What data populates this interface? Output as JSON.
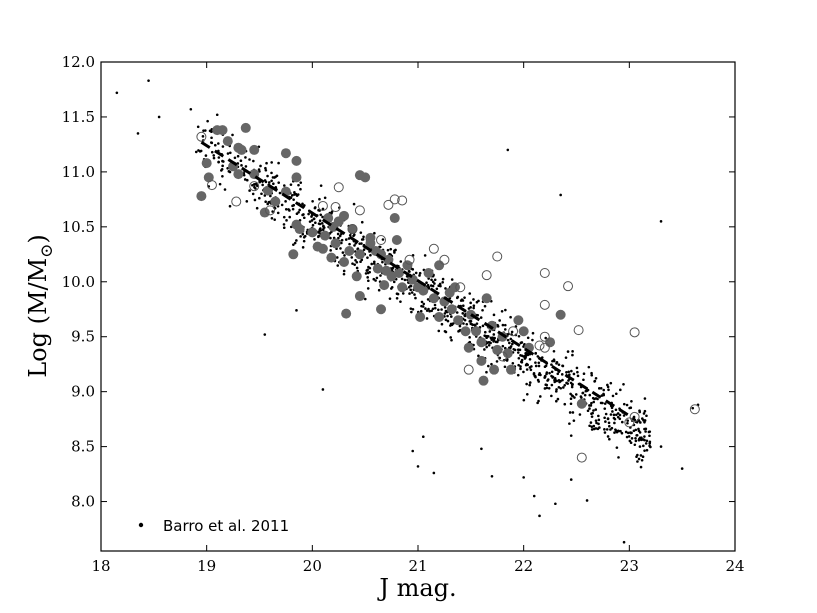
{
  "chart_data": {
    "type": "scatter",
    "xlabel": "J mag.",
    "ylabel_prefix": "Log (M/M",
    "ylabel_suffix": ")",
    "xlim": [
      18,
      24
    ],
    "ylim": [
      7.55,
      12.0
    ],
    "x_ticks": [
      "18",
      "19",
      "20",
      "21",
      "22",
      "23",
      "24"
    ],
    "y_ticks": [
      "8.0",
      "8.5",
      "9.0",
      "9.5",
      "10.0",
      "10.5",
      "11.0",
      "11.5",
      "12.0"
    ],
    "grid": false,
    "legend_position": "lower-left",
    "series": [
      {
        "name": "Barro et al. 2011",
        "marker": "small-dot",
        "color": "#000000",
        "trend": {
          "slope": -0.63,
          "intercept": 23.17,
          "sigma": 0.28,
          "x_range": [
            18.9,
            23.2
          ]
        },
        "count": 1100,
        "outliers": [
          [
            18.15,
            11.72
          ],
          [
            18.45,
            11.83
          ],
          [
            18.55,
            11.5
          ],
          [
            18.35,
            11.35
          ],
          [
            18.85,
            11.57
          ],
          [
            19.1,
            11.52
          ],
          [
            19.55,
            9.52
          ],
          [
            19.85,
            9.74
          ],
          [
            20.1,
            9.02
          ],
          [
            21.05,
            8.59
          ],
          [
            21.15,
            8.26
          ],
          [
            21.6,
            8.48
          ],
          [
            21.7,
            8.23
          ],
          [
            22.15,
            7.87
          ],
          [
            22.3,
            7.98
          ],
          [
            22.1,
            8.05
          ],
          [
            22.6,
            8.01
          ],
          [
            22.95,
            7.63
          ],
          [
            23.5,
            8.3
          ],
          [
            23.3,
            8.5
          ],
          [
            23.3,
            10.55
          ],
          [
            22.35,
            10.79
          ],
          [
            21.85,
            11.2
          ],
          [
            23.65,
            8.88
          ],
          [
            23.6,
            8.85
          ],
          [
            21.0,
            8.32
          ],
          [
            20.95,
            8.46
          ],
          [
            22.45,
            8.2
          ],
          [
            22.45,
            8.6
          ],
          [
            22.0,
            8.22
          ]
        ]
      },
      {
        "name": "",
        "marker": "filled-circle",
        "color": "#666666",
        "points": [
          [
            19.1,
            11.38
          ],
          [
            19.15,
            11.38
          ],
          [
            19.37,
            11.4
          ],
          [
            19.3,
            11.22
          ],
          [
            19.33,
            11.2
          ],
          [
            19.45,
            11.2
          ],
          [
            19.2,
            11.28
          ],
          [
            19.0,
            11.08
          ],
          [
            19.02,
            10.95
          ],
          [
            18.95,
            10.78
          ],
          [
            19.25,
            11.05
          ],
          [
            19.3,
            10.98
          ],
          [
            19.55,
            10.63
          ],
          [
            19.58,
            10.83
          ],
          [
            19.75,
            10.82
          ],
          [
            19.75,
            11.17
          ],
          [
            19.85,
            11.1
          ],
          [
            19.85,
            10.95
          ],
          [
            19.65,
            10.73
          ],
          [
            19.85,
            10.52
          ],
          [
            19.88,
            10.48
          ],
          [
            19.82,
            10.25
          ],
          [
            20.0,
            10.45
          ],
          [
            20.05,
            10.32
          ],
          [
            20.12,
            10.42
          ],
          [
            20.1,
            10.3
          ],
          [
            20.22,
            10.35
          ],
          [
            20.2,
            10.5
          ],
          [
            20.25,
            10.55
          ],
          [
            20.3,
            10.6
          ],
          [
            20.18,
            10.22
          ],
          [
            20.35,
            10.28
          ],
          [
            20.3,
            10.18
          ],
          [
            20.42,
            10.05
          ],
          [
            20.45,
            10.25
          ],
          [
            20.45,
            10.97
          ],
          [
            20.5,
            10.95
          ],
          [
            20.32,
            9.71
          ],
          [
            20.45,
            9.87
          ],
          [
            20.55,
            10.35
          ],
          [
            20.6,
            10.28
          ],
          [
            20.62,
            10.12
          ],
          [
            20.65,
            10.25
          ],
          [
            20.7,
            10.1
          ],
          [
            20.72,
            10.2
          ],
          [
            20.68,
            9.97
          ],
          [
            20.75,
            10.05
          ],
          [
            20.8,
            10.38
          ],
          [
            20.78,
            10.58
          ],
          [
            20.82,
            10.08
          ],
          [
            20.9,
            10.15
          ],
          [
            20.85,
            9.95
          ],
          [
            20.95,
            10.02
          ],
          [
            21.0,
            9.95
          ],
          [
            20.65,
            9.75
          ],
          [
            21.02,
            9.68
          ],
          [
            21.05,
            9.92
          ],
          [
            21.1,
            10.08
          ],
          [
            21.15,
            9.85
          ],
          [
            21.2,
            10.15
          ],
          [
            21.2,
            9.68
          ],
          [
            21.25,
            9.82
          ],
          [
            21.3,
            9.9
          ],
          [
            21.35,
            9.95
          ],
          [
            21.32,
            9.75
          ],
          [
            21.38,
            9.65
          ],
          [
            21.45,
            9.55
          ],
          [
            21.48,
            9.4
          ],
          [
            21.5,
            9.7
          ],
          [
            21.55,
            9.55
          ],
          [
            21.6,
            9.45
          ],
          [
            21.6,
            9.28
          ],
          [
            21.62,
            9.1
          ],
          [
            21.65,
            9.85
          ],
          [
            21.7,
            9.6
          ],
          [
            21.75,
            9.38
          ],
          [
            21.72,
            9.2
          ],
          [
            21.8,
            9.5
          ],
          [
            21.85,
            9.35
          ],
          [
            21.88,
            9.2
          ],
          [
            21.95,
            9.65
          ],
          [
            22.0,
            9.55
          ],
          [
            22.05,
            9.4
          ],
          [
            22.25,
            9.45
          ],
          [
            22.35,
            9.7
          ],
          [
            22.55,
            8.89
          ],
          [
            20.15,
            10.58
          ],
          [
            20.38,
            10.48
          ],
          [
            20.55,
            10.4
          ],
          [
            19.45,
            10.98
          ]
        ]
      },
      {
        "name": "",
        "marker": "open-circle",
        "color": "#555555",
        "points": [
          [
            18.95,
            11.32
          ],
          [
            19.05,
            10.88
          ],
          [
            19.28,
            10.73
          ],
          [
            19.45,
            10.87
          ],
          [
            19.6,
            10.65
          ],
          [
            20.1,
            10.69
          ],
          [
            20.22,
            10.68
          ],
          [
            20.25,
            10.86
          ],
          [
            20.45,
            10.65
          ],
          [
            20.65,
            10.38
          ],
          [
            20.72,
            10.7
          ],
          [
            20.78,
            10.75
          ],
          [
            20.85,
            10.74
          ],
          [
            20.92,
            10.2
          ],
          [
            21.15,
            10.3
          ],
          [
            21.25,
            10.2
          ],
          [
            21.4,
            9.95
          ],
          [
            21.48,
            9.2
          ],
          [
            21.65,
            10.06
          ],
          [
            21.75,
            10.23
          ],
          [
            21.8,
            9.32
          ],
          [
            21.9,
            9.55
          ],
          [
            22.2,
            9.5
          ],
          [
            22.2,
            9.4
          ],
          [
            22.2,
            9.79
          ],
          [
            22.2,
            10.08
          ],
          [
            22.42,
            9.96
          ],
          [
            22.52,
            9.56
          ],
          [
            22.55,
            8.4
          ],
          [
            23.0,
            8.72
          ],
          [
            23.05,
            8.77
          ],
          [
            23.05,
            9.54
          ],
          [
            23.62,
            8.84
          ],
          [
            22.15,
            9.42
          ],
          [
            20.38,
            10.48
          ]
        ]
      }
    ],
    "fit_line": {
      "style": "dashed",
      "x": [
        18.95,
        23.05
      ],
      "y": [
        11.27,
        8.75
      ]
    }
  }
}
